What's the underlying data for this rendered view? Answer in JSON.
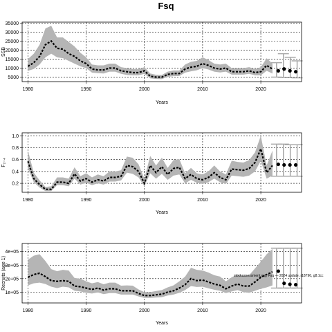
{
  "title": "Fsq",
  "chart_data": [
    {
      "type": "line",
      "xlabel": "Years",
      "ylabel": "SSB",
      "xlim": [
        1979,
        2027
      ],
      "ylim": [
        2500,
        35500
      ],
      "xticks": [
        1980,
        1990,
        2000,
        2010,
        2020
      ],
      "yticks": [
        5000,
        10000,
        15000,
        20000,
        25000,
        30000,
        35000
      ],
      "ytick_labels": [
        "5000",
        "10000",
        "15000",
        "20000",
        "25000",
        "30000",
        "35000"
      ],
      "grid": true,
      "series": [
        {
          "x": [
            1980,
            1981,
            1982,
            1983,
            1984,
            1985,
            1986,
            1987,
            1988,
            1989,
            1990,
            1991,
            1992,
            1993,
            1994,
            1995,
            1996,
            1997,
            1998,
            1999,
            2000,
            2001,
            2002,
            2003,
            2004,
            2005,
            2006,
            2007,
            2008,
            2009,
            2010,
            2011,
            2012,
            2013,
            2014,
            2015,
            2016,
            2017,
            2018,
            2019,
            2020,
            2021,
            2022
          ],
          "y": [
            11000,
            13000,
            16500,
            23000,
            25000,
            21000,
            20500,
            18000,
            16500,
            14000,
            12500,
            9500,
            9000,
            9000,
            10000,
            10000,
            8500,
            8000,
            7500,
            7500,
            8500,
            5500,
            5000,
            5000,
            6500,
            7000,
            7000,
            9500,
            10500,
            11000,
            12500,
            11500,
            10000,
            9500,
            10000,
            8000,
            8000,
            8000,
            8500,
            7500,
            8000,
            11500,
            9500
          ],
          "lower": [
            8500,
            9500,
            12000,
            16000,
            18000,
            16000,
            15500,
            14000,
            12500,
            11000,
            10000,
            7500,
            7200,
            7000,
            8000,
            8000,
            6800,
            6200,
            6000,
            6000,
            6800,
            4300,
            4000,
            3900,
            5200,
            5500,
            5600,
            7500,
            8200,
            8800,
            10000,
            9200,
            8000,
            7600,
            8000,
            6400,
            6400,
            6400,
            6800,
            6000,
            6000,
            8500,
            7000
          ],
          "upper": [
            15000,
            18000,
            23000,
            32000,
            33500,
            27000,
            27000,
            24500,
            22000,
            18500,
            16000,
            12000,
            11500,
            11500,
            12500,
            12500,
            10500,
            10000,
            9500,
            9500,
            10500,
            7000,
            6300,
            6200,
            8000,
            8700,
            8700,
            12000,
            13500,
            14000,
            16000,
            14500,
            12500,
            12000,
            12500,
            10000,
            10000,
            10000,
            10500,
            9500,
            10500,
            15500,
            12500
          ]
        }
      ],
      "projection": {
        "x": [
          2023,
          2024,
          2025,
          2026
        ],
        "y": [
          8500,
          9500,
          8500,
          8000
        ],
        "lower": [
          5000,
          4800,
          4700,
          4600
        ],
        "upper": [
          13000,
          18000,
          16000,
          14000
        ]
      }
    },
    {
      "type": "line",
      "xlabel": "Years",
      "ylabel": "F₂₋₄",
      "xlim": [
        1979,
        2027
      ],
      "ylim": [
        0.05,
        1.05
      ],
      "xticks": [
        1980,
        1990,
        2000,
        2010,
        2020
      ],
      "yticks": [
        0.2,
        0.4,
        0.6,
        0.8,
        1.0
      ],
      "ytick_labels": [
        "0.2",
        "0.4",
        "0.6",
        "0.8",
        "1.0"
      ],
      "grid": true,
      "series": [
        {
          "x": [
            1980,
            1981,
            1982,
            1983,
            1984,
            1985,
            1986,
            1987,
            1988,
            1989,
            1990,
            1991,
            1992,
            1993,
            1994,
            1995,
            1996,
            1997,
            1998,
            1999,
            2000,
            2001,
            2002,
            2003,
            2004,
            2005,
            2006,
            2007,
            2008,
            2009,
            2010,
            2011,
            2012,
            2013,
            2014,
            2015,
            2016,
            2017,
            2018,
            2019,
            2020,
            2021,
            2022
          ],
          "y": [
            0.57,
            0.28,
            0.18,
            0.1,
            0.1,
            0.22,
            0.22,
            0.2,
            0.36,
            0.24,
            0.28,
            0.22,
            0.26,
            0.24,
            0.3,
            0.3,
            0.32,
            0.5,
            0.48,
            0.4,
            0.2,
            0.5,
            0.38,
            0.48,
            0.35,
            0.45,
            0.47,
            0.28,
            0.35,
            0.28,
            0.26,
            0.3,
            0.38,
            0.3,
            0.26,
            0.44,
            0.43,
            0.42,
            0.45,
            0.55,
            0.78,
            0.38,
            0.5
          ],
          "lower": [
            0.45,
            0.22,
            0.13,
            0.07,
            0.07,
            0.17,
            0.17,
            0.15,
            0.28,
            0.18,
            0.21,
            0.17,
            0.2,
            0.18,
            0.23,
            0.23,
            0.25,
            0.38,
            0.36,
            0.3,
            0.15,
            0.37,
            0.28,
            0.36,
            0.26,
            0.33,
            0.35,
            0.2,
            0.26,
            0.21,
            0.19,
            0.22,
            0.28,
            0.22,
            0.19,
            0.33,
            0.32,
            0.31,
            0.33,
            0.4,
            0.58,
            0.28,
            0.33
          ],
          "upper": [
            0.75,
            0.38,
            0.25,
            0.14,
            0.15,
            0.3,
            0.3,
            0.28,
            0.47,
            0.32,
            0.37,
            0.3,
            0.35,
            0.32,
            0.4,
            0.4,
            0.42,
            0.65,
            0.63,
            0.52,
            0.28,
            0.66,
            0.5,
            0.63,
            0.46,
            0.59,
            0.61,
            0.37,
            0.46,
            0.37,
            0.35,
            0.4,
            0.5,
            0.4,
            0.35,
            0.58,
            0.56,
            0.55,
            0.59,
            0.72,
            1.0,
            0.5,
            0.75
          ]
        }
      ],
      "projection": {
        "x": [
          2023,
          2024,
          2025,
          2026
        ],
        "y": [
          0.52,
          0.51,
          0.51,
          0.51
        ],
        "lower": [
          0.32,
          0.32,
          0.32,
          0.32
        ],
        "upper": [
          0.86,
          0.86,
          0.85,
          0.85
        ]
      }
    },
    {
      "type": "line",
      "xlabel": "Years",
      "ylabel": "Recruits (age 1)",
      "xlim": [
        1979,
        2027
      ],
      "ylim": [
        20000,
        460000
      ],
      "xticks": [
        1980,
        1990,
        2000,
        2010,
        2020
      ],
      "yticks": [
        100000,
        200000,
        300000,
        400000
      ],
      "ytick_labels": [
        "1e+05",
        "2e+05",
        "3e+05",
        "4e+05"
      ],
      "grid": true,
      "series": [
        {
          "x": [
            1980,
            1981,
            1982,
            1983,
            1984,
            1985,
            1986,
            1987,
            1988,
            1989,
            1990,
            1991,
            1992,
            1993,
            1994,
            1995,
            1996,
            1997,
            1998,
            1999,
            2000,
            2001,
            2002,
            2003,
            2004,
            2005,
            2006,
            2007,
            2008,
            2009,
            2010,
            2011,
            2012,
            2013,
            2014,
            2015,
            2016,
            2017,
            2018,
            2019,
            2020,
            2021,
            2022
          ],
          "y": [
            210000,
            230000,
            240000,
            215000,
            185000,
            180000,
            185000,
            180000,
            145000,
            140000,
            130000,
            120000,
            130000,
            115000,
            125000,
            125000,
            110000,
            110000,
            110000,
            90000,
            75000,
            75000,
            80000,
            85000,
            100000,
            110000,
            130000,
            155000,
            200000,
            185000,
            190000,
            175000,
            160000,
            150000,
            125000,
            145000,
            160000,
            145000,
            145000,
            175000,
            210000,
            230000,
            250000
          ],
          "lower": [
            150000,
            165000,
            170000,
            160000,
            140000,
            130000,
            140000,
            135000,
            110000,
            105000,
            95000,
            90000,
            98000,
            85000,
            93000,
            93000,
            82000,
            82000,
            82000,
            68000,
            57000,
            57000,
            60000,
            63000,
            75000,
            82000,
            95000,
            115000,
            145000,
            138000,
            140000,
            128000,
            118000,
            110000,
            93000,
            105000,
            115000,
            100000,
            95000,
            110000,
            125000,
            135000,
            150000
          ],
          "upper": [
            340000,
            370000,
            380000,
            330000,
            270000,
            255000,
            265000,
            260000,
            205000,
            200000,
            180000,
            165000,
            175000,
            158000,
            170000,
            170000,
            148000,
            150000,
            148000,
            120000,
            100000,
            100000,
            108000,
            115000,
            135000,
            150000,
            180000,
            215000,
            280000,
            265000,
            260000,
            245000,
            225000,
            215000,
            180000,
            210000,
            230000,
            220000,
            225000,
            275000,
            325000,
            380000,
            420000
          ]
        }
      ],
      "projection": {
        "x": [
          2023,
          2024,
          2025,
          2026
        ],
        "y": [
          255000,
          165000,
          158000,
          155000
        ],
        "lower": [
          130000,
          130000,
          130000,
          130000
        ],
        "upper": [
          425000,
          425000,
          425000,
          425000
        ]
      },
      "annotation": "stockassessment.org, Fsq — 2024 update, r18796, g8.1cc"
    }
  ]
}
